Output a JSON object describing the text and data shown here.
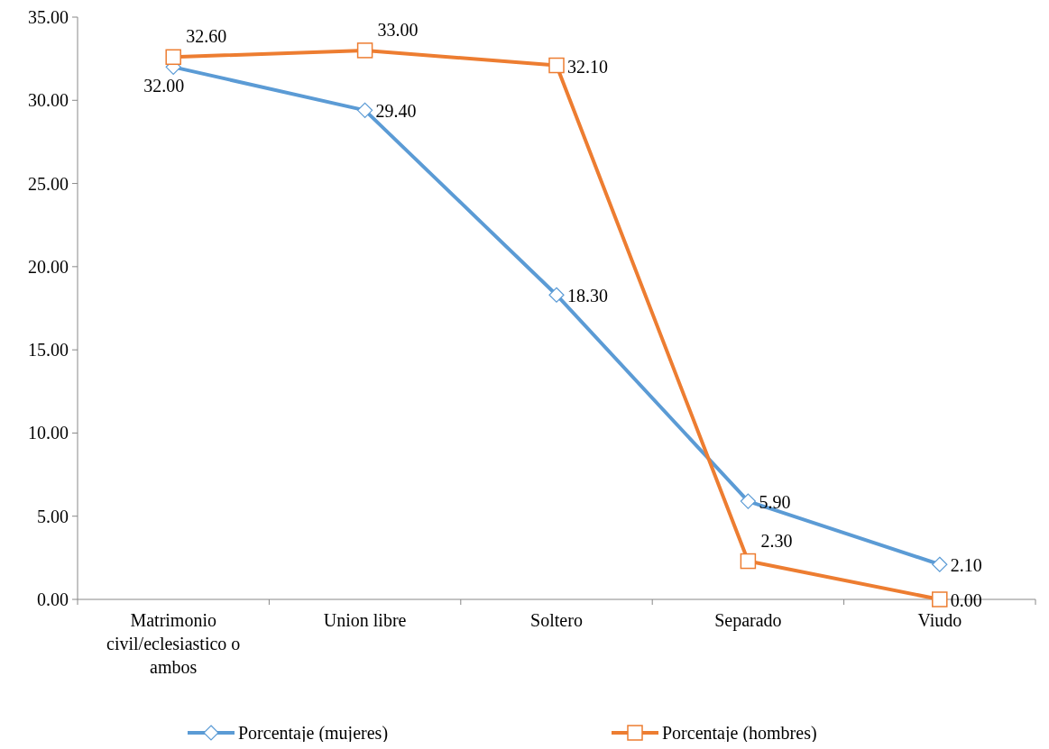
{
  "chart_data": {
    "type": "line",
    "categories": [
      "Matrimonio civil/eclesiastico o ambos",
      "Union libre",
      "Soltero",
      "Separado",
      "Viudo"
    ],
    "series": [
      {
        "name": "Porcentaje (mujeres)",
        "color": "#5b9bd5",
        "marker": "diamond",
        "values": [
          32.0,
          29.4,
          18.3,
          5.9,
          2.1
        ],
        "value_labels": [
          "32.00",
          "29.40",
          "18.30",
          "5.90",
          "2.10"
        ]
      },
      {
        "name": "Porcentaje  (hombres)",
        "color": "#ed7d31",
        "marker": "square",
        "values": [
          32.6,
          33.0,
          32.1,
          2.3,
          0.0
        ],
        "value_labels": [
          "32.60",
          "33.00",
          "32.10",
          "2.30",
          "0.00"
        ]
      }
    ],
    "ylim": [
      0,
      35
    ],
    "yticks": [
      {
        "value": 0,
        "label": "0.00"
      },
      {
        "value": 5,
        "label": "5.00"
      },
      {
        "value": 10,
        "label": "10.00"
      },
      {
        "value": 15,
        "label": "15.00"
      },
      {
        "value": 20,
        "label": "20.00"
      },
      {
        "value": 25,
        "label": "25.00"
      },
      {
        "value": 30,
        "label": "30.00"
      },
      {
        "value": 35,
        "label": "35.00"
      }
    ],
    "grid": false,
    "legend": "bottom"
  }
}
